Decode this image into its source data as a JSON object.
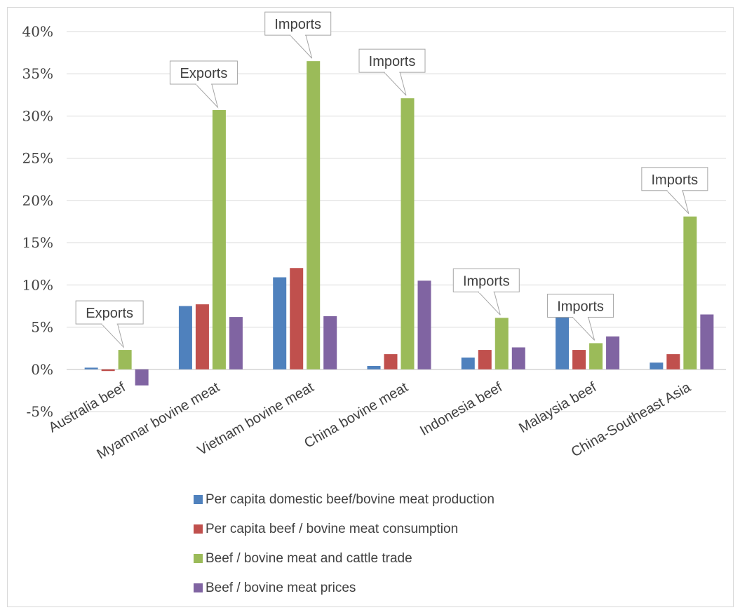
{
  "chart_data": {
    "type": "bar",
    "categories": [
      "Australia beef",
      "Myamnar bovine meat",
      "Vietnam bovine meat",
      "China bovine meat",
      "Indonesia beef",
      "Malaysia beef",
      "China-Southeast Asia"
    ],
    "series": [
      {
        "name": "Per capita domestic beef/bovine meat production",
        "color": "#4f81bd",
        "values": [
          0.2,
          7.5,
          10.9,
          0.4,
          1.4,
          6.3,
          0.8
        ]
      },
      {
        "name": "Per capita beef / bovine meat consumption",
        "color": "#c0504d",
        "values": [
          -0.2,
          7.7,
          12.0,
          1.8,
          2.3,
          2.3,
          1.8
        ]
      },
      {
        "name": "Beef / bovine meat and cattle trade",
        "color": "#9bbb59",
        "values": [
          2.3,
          30.7,
          36.5,
          32.1,
          6.1,
          3.1,
          18.1
        ]
      },
      {
        "name": "Beef / bovine meat prices",
        "color": "#8064a2",
        "values": [
          -1.9,
          6.2,
          6.3,
          10.5,
          2.6,
          3.9,
          6.5
        ]
      }
    ],
    "annotations": [
      "Exports",
      "Exports",
      "Imports",
      "Imports",
      "Imports",
      "Imports",
      "Imports"
    ],
    "y_ticks": [
      "-5%",
      "0%",
      "5%",
      "10%",
      "15%",
      "20%",
      "25%",
      "30%",
      "35%",
      "40%"
    ],
    "ylim": [
      -5,
      40
    ],
    "grid": true,
    "legend_position": "bottom",
    "title": "",
    "xlabel": "",
    "ylabel": ""
  }
}
